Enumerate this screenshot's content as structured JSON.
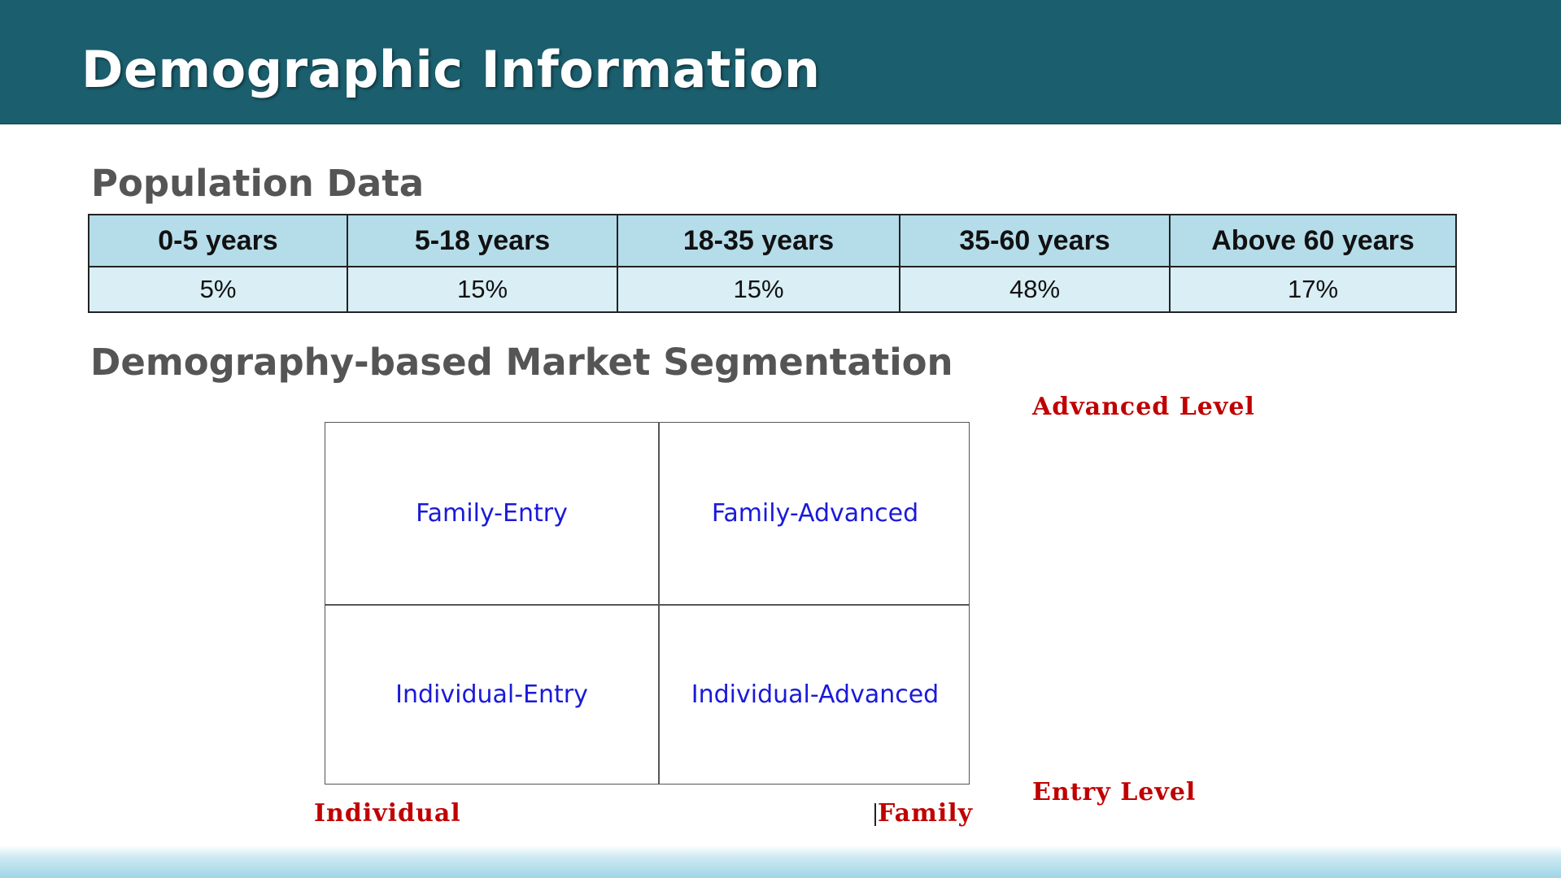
{
  "slide": {
    "title": "Demographic Information"
  },
  "population": {
    "heading": "Population Data",
    "columns": [
      "0-5 years",
      "5-18 years",
      "18-35 years",
      "35-60 years",
      "Above 60 years"
    ],
    "values": [
      "5%",
      "15%",
      "15%",
      "48%",
      "17%"
    ]
  },
  "segmentation": {
    "heading": "Demography-based Market Segmentation",
    "quadrants": {
      "top_left": "Family-Entry",
      "top_right": "Family-Advanced",
      "bottom_left": "Individual-Entry",
      "bottom_right": "Individual-Advanced"
    },
    "axis_labels": {
      "top_right": "Advanced Level",
      "bottom_right": "Entry Level",
      "bottom_left": "Individual",
      "bottom_mid": "Family"
    },
    "colors": {
      "quadrant_text": "#1a1ad9",
      "axis_text": "#c00000"
    }
  },
  "theme": {
    "header_bg": "#1b5f6e",
    "table_header_bg": "#b5dce9",
    "table_cell_bg": "#d9eef5"
  }
}
